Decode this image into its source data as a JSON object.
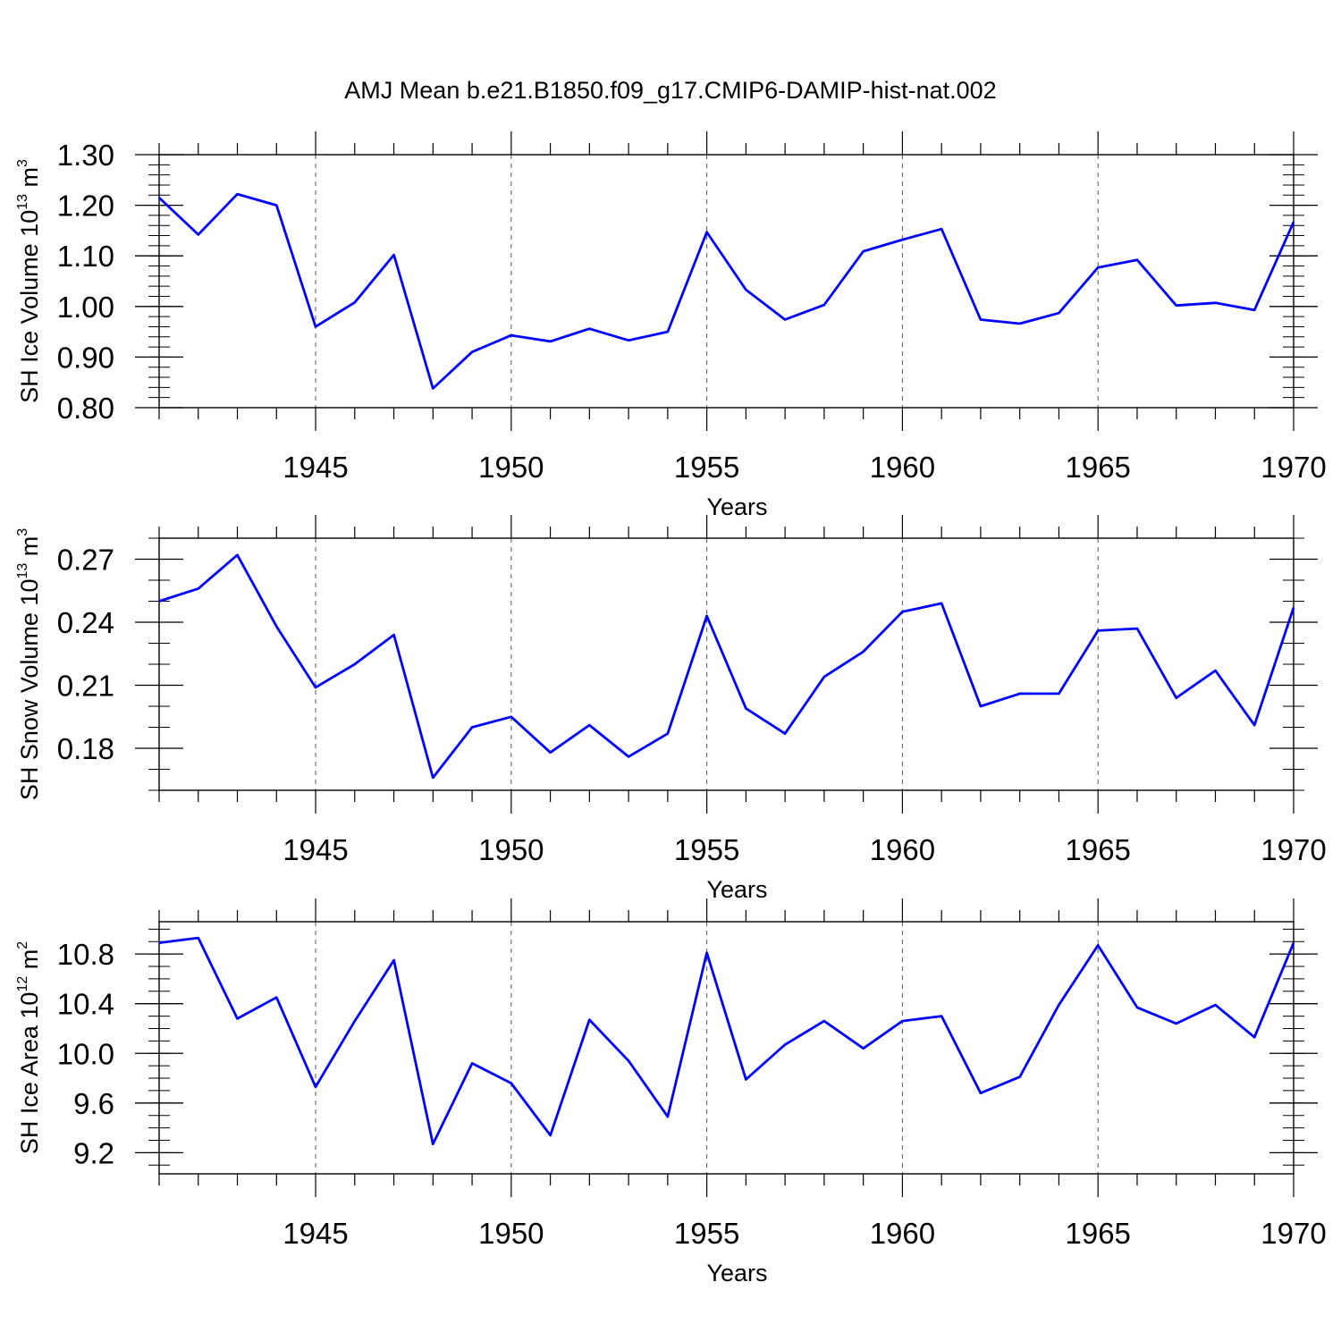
{
  "title": "AMJ Mean b.e21.B1850.f09_g17.CMIP6-DAMIP-hist-nat.002",
  "line_color": "#0000ff",
  "chart_data": [
    {
      "type": "line",
      "ylabel": "SH Ice Volume 10",
      "ylabel_exp": "13",
      "ylabel_unit": " m",
      "ylabel_unit_exp": "3",
      "xlabel": "Years",
      "xlim": [
        1941,
        1970
      ],
      "ylim": [
        0.8,
        1.3
      ],
      "yticks": [
        0.8,
        0.9,
        1.0,
        1.1,
        1.2,
        1.3
      ],
      "ytick_labels": [
        "0.80",
        "0.90",
        "1.00",
        "1.10",
        "1.20",
        "1.30"
      ],
      "yminor": 0.02,
      "xticks": [
        1945,
        1950,
        1955,
        1960,
        1965,
        1970
      ],
      "xtick_labels": [
        "1945",
        "1950",
        "1955",
        "1960",
        "1965",
        "1970"
      ],
      "grid": "vertical dashed at major x ticks",
      "x": [
        1941,
        1942,
        1943,
        1944,
        1945,
        1946,
        1947,
        1948,
        1949,
        1950,
        1951,
        1952,
        1953,
        1954,
        1955,
        1956,
        1957,
        1958,
        1959,
        1960,
        1961,
        1962,
        1963,
        1964,
        1965,
        1966,
        1967,
        1968,
        1969,
        1970
      ],
      "values": [
        1.215,
        1.142,
        1.222,
        1.2,
        0.96,
        1.008,
        1.102,
        0.838,
        0.91,
        0.943,
        0.931,
        0.956,
        0.933,
        0.95,
        1.147,
        1.033,
        0.974,
        1.003,
        1.109,
        1.132,
        1.153,
        0.974,
        0.966,
        0.987,
        1.077,
        1.092,
        1.002,
        1.007,
        0.993,
        1.167
      ]
    },
    {
      "type": "line",
      "ylabel": "SH Snow Volume 10",
      "ylabel_exp": "13",
      "ylabel_unit": " m",
      "ylabel_unit_exp": "3",
      "xlabel": "Years",
      "xlim": [
        1941,
        1970
      ],
      "ylim": [
        0.16,
        0.28
      ],
      "yticks": [
        0.18,
        0.21,
        0.24,
        0.27
      ],
      "ytick_labels": [
        "0.18",
        "0.21",
        "0.24",
        "0.27"
      ],
      "yminor": 0.01,
      "xticks": [
        1945,
        1950,
        1955,
        1960,
        1965,
        1970
      ],
      "xtick_labels": [
        "1945",
        "1950",
        "1955",
        "1960",
        "1965",
        "1970"
      ],
      "grid": "vertical dashed at major x ticks",
      "x": [
        1941,
        1942,
        1943,
        1944,
        1945,
        1946,
        1947,
        1948,
        1949,
        1950,
        1951,
        1952,
        1953,
        1954,
        1955,
        1956,
        1957,
        1958,
        1959,
        1960,
        1961,
        1962,
        1963,
        1964,
        1965,
        1966,
        1967,
        1968,
        1969,
        1970
      ],
      "values": [
        0.25,
        0.256,
        0.272,
        0.238,
        0.209,
        0.22,
        0.234,
        0.166,
        0.19,
        0.195,
        0.178,
        0.191,
        0.176,
        0.187,
        0.243,
        0.199,
        0.187,
        0.214,
        0.226,
        0.245,
        0.249,
        0.2,
        0.206,
        0.206,
        0.236,
        0.237,
        0.204,
        0.217,
        0.191,
        0.247
      ]
    },
    {
      "type": "line",
      "ylabel": "SH Ice Area 10",
      "ylabel_exp": "12",
      "ylabel_unit": " m",
      "ylabel_unit_exp": "2",
      "xlabel": "Years",
      "xlim": [
        1941,
        1970
      ],
      "ylim": [
        9.03,
        11.06
      ],
      "yticks": [
        9.2,
        9.6,
        10.0,
        10.4,
        10.8
      ],
      "ytick_labels": [
        "9.2",
        "9.6",
        "10.0",
        "10.4",
        "10.8"
      ],
      "yminor": 0.1,
      "xticks": [
        1945,
        1950,
        1955,
        1960,
        1965,
        1970
      ],
      "xtick_labels": [
        "1945",
        "1950",
        "1955",
        "1960",
        "1965",
        "1970"
      ],
      "grid": "vertical dashed at major x ticks",
      "x": [
        1941,
        1942,
        1943,
        1944,
        1945,
        1946,
        1947,
        1948,
        1949,
        1950,
        1951,
        1952,
        1953,
        1954,
        1955,
        1956,
        1957,
        1958,
        1959,
        1960,
        1961,
        1962,
        1963,
        1964,
        1965,
        1966,
        1967,
        1968,
        1969,
        1970
      ],
      "values": [
        10.89,
        10.93,
        10.28,
        10.45,
        9.73,
        10.26,
        10.75,
        9.27,
        9.92,
        9.76,
        9.34,
        10.27,
        9.94,
        9.49,
        10.81,
        9.79,
        10.07,
        10.26,
        10.04,
        10.26,
        10.3,
        9.68,
        9.81,
        10.39,
        10.87,
        10.37,
        10.24,
        10.39,
        10.13,
        10.89
      ]
    }
  ]
}
